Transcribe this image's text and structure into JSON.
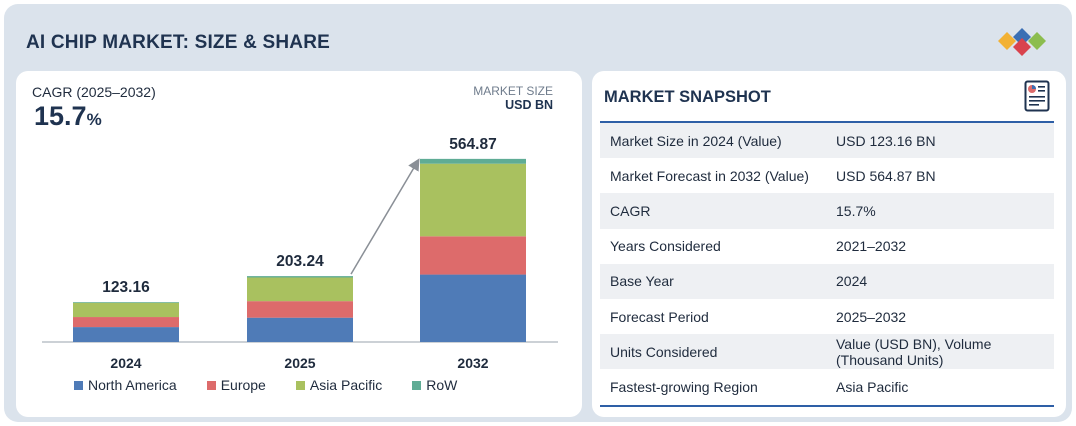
{
  "header": {
    "title": "AI CHIP MARKET: SIZE & SHARE"
  },
  "cagr": {
    "label": "CAGR (2025–2032)",
    "value": "15.7",
    "unit": "%"
  },
  "market_size": {
    "label": "MARKET SIZE",
    "unit": "USD BN"
  },
  "chart_data": {
    "type": "bar",
    "stacked": true,
    "categories": [
      "2024",
      "2025",
      "2032"
    ],
    "totals": [
      "123.16",
      "203.24",
      "564.87"
    ],
    "total_values": [
      123.16,
      203.24,
      564.87
    ],
    "series": [
      {
        "name": "North America",
        "color": "#4f7bb7",
        "values": [
          46,
          75,
          208
        ]
      },
      {
        "name": "Europe",
        "color": "#dd6b6b",
        "values": [
          31,
          51,
          118
        ]
      },
      {
        "name": "Asia Pacific",
        "color": "#a9c15f",
        "values": [
          44,
          73,
          224
        ]
      },
      {
        "name": "RoW",
        "color": "#5fac95",
        "values": [
          2.16,
          4.24,
          14.87
        ]
      }
    ],
    "ylim": [
      0,
      620
    ],
    "title": "",
    "xlabel": "",
    "ylabel": ""
  },
  "snapshot": {
    "title": "MARKET SNAPSHOT",
    "rows": [
      {
        "key": "Market Size in 2024 (Value)",
        "value": "USD 123.16 BN"
      },
      {
        "key": "Market Forecast in 2032 (Value)",
        "value": "USD 564.87 BN"
      },
      {
        "key": "CAGR",
        "value": "15.7%"
      },
      {
        "key": "Years Considered",
        "value": "2021–2032"
      },
      {
        "key": "Base Year",
        "value": "2024"
      },
      {
        "key": "Forecast Period",
        "value": "2025–2032"
      },
      {
        "key": "Units Considered",
        "value": "Value (USD BN), Volume (Thousand Units)"
      },
      {
        "key": "Fastest-growing Region",
        "value": "Asia Pacific"
      }
    ]
  },
  "icons": {
    "logo": "logo-diamonds-icon",
    "snapshot": "report-icon"
  }
}
